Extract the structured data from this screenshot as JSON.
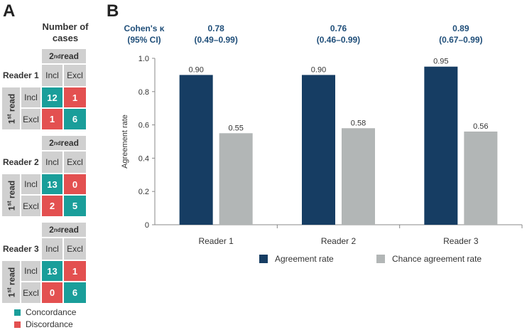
{
  "panel_a": {
    "letter": "A",
    "header": "Number of cases",
    "second_read": "2nd read",
    "first_read": "1st read",
    "incl": "Incl",
    "excl": "Excl",
    "readers": [
      {
        "name": "Reader 1",
        "matrix": [
          [
            12,
            1
          ],
          [
            1,
            6
          ]
        ]
      },
      {
        "name": "Reader 2",
        "matrix": [
          [
            13,
            0
          ],
          [
            2,
            5
          ]
        ]
      },
      {
        "name": "Reader 3",
        "matrix": [
          [
            13,
            1
          ],
          [
            0,
            6
          ]
        ]
      }
    ],
    "legend": [
      {
        "label": "Concordance",
        "color": "#1a9e9a"
      },
      {
        "label": "Discordance",
        "color": "#e35050"
      }
    ]
  },
  "panel_b": {
    "letter": "B",
    "kappa_header": "Cohen's κ (95% CI)",
    "kappas": [
      "0.78 (0.49–0.99)",
      "0.76 (0.46–0.99)",
      "0.89 (0.67–0.99)"
    ]
  },
  "chart_data": {
    "type": "bar",
    "categories": [
      "Reader 1",
      "Reader 2",
      "Reader 3"
    ],
    "series": [
      {
        "name": "Agreement rate",
        "values": [
          0.9,
          0.9,
          0.95
        ],
        "color": "#163d63"
      },
      {
        "name": "Chance agreement rate",
        "values": [
          0.55,
          0.58,
          0.56
        ],
        "color": "#b2b6b6"
      }
    ],
    "data_labels": [
      [
        "0.90",
        "0.90",
        "0.95"
      ],
      [
        "0.55",
        "0.58",
        "0.56"
      ]
    ],
    "ylabel": "Agreement rate",
    "ylim": [
      0,
      1.0
    ],
    "yticks": [
      "0",
      "0.2",
      "0.4",
      "0.6",
      "0.8",
      "1.0"
    ],
    "legend_position": "bottom"
  }
}
